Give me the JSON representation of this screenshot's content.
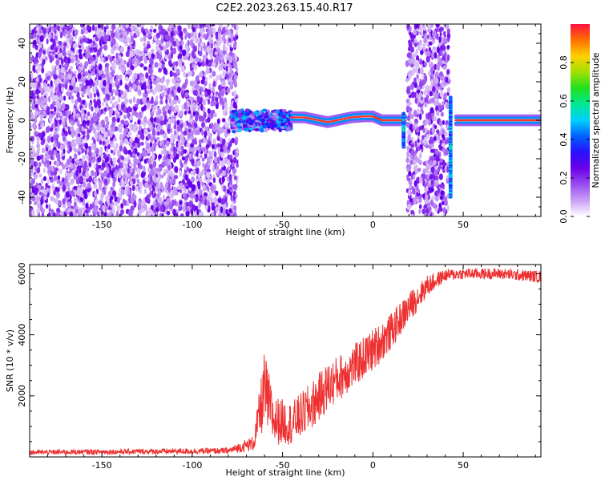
{
  "title": "C2E2.2023.263.15.40.R17",
  "chart_data": [
    {
      "type": "heatmap",
      "xlabel": "Height of straight line (km)",
      "ylabel": "Frequency (Hz)",
      "xlim": [
        -190,
        93
      ],
      "ylim": [
        -50,
        50
      ],
      "xticks": [
        -150,
        -100,
        -50,
        0,
        50
      ],
      "yticks": [
        -40,
        -20,
        0,
        20,
        40
      ],
      "colorbar": {
        "label": "Normalized spectral amplitude",
        "range": [
          0.0,
          1.0
        ],
        "ticks": [
          0.0,
          0.2,
          0.4,
          0.6,
          0.8
        ],
        "tick_labels": [
          "0.0",
          "0.2",
          "0.4",
          "0.6",
          "0.8"
        ],
        "colormap": [
          "#ffffff",
          "#c8a0f5",
          "#9a4cf0",
          "#6a00e8",
          "#2a10ff",
          "#0060ff",
          "#00d0ff",
          "#00e890",
          "#20e020",
          "#a0e000",
          "#ffd000",
          "#ff7000",
          "#ff1040"
        ]
      },
      "regions": [
        {
          "name": "noise",
          "x_range": [
            -190,
            -75
          ],
          "f_range": [
            -50,
            50
          ]
        },
        {
          "name": "broadening",
          "x_range": [
            -78,
            -45
          ],
          "f_center": 0,
          "f_halfwidth": 6
        },
        {
          "name": "carrier",
          "x_range": [
            -45,
            18
          ],
          "f_points": [
            [
              -45,
              1.5
            ],
            [
              -38,
              1.5
            ],
            [
              -30,
              0
            ],
            [
              -25,
              -1
            ],
            [
              -20,
              0
            ],
            [
              -12,
              1.5
            ],
            [
              -5,
              2
            ],
            [
              0,
              2
            ],
            [
              5,
              0
            ],
            [
              15,
              0
            ]
          ]
        },
        {
          "name": "spike",
          "x": 17,
          "f_range": [
            -14,
            4
          ]
        },
        {
          "name": "noise",
          "x_range": [
            19,
            42
          ],
          "f_range": [
            -50,
            50
          ]
        },
        {
          "name": "spike",
          "x": 43,
          "f_range": [
            -40,
            12
          ]
        },
        {
          "name": "carrier",
          "x_range": [
            46,
            93
          ],
          "f_points": [
            [
              46,
              0
            ],
            [
              93,
              0
            ]
          ]
        }
      ]
    },
    {
      "type": "line",
      "xlabel": "Height of straight line (km)",
      "ylabel": "SNR (10 * v/v)",
      "xlim": [
        -190,
        93
      ],
      "ylim": [
        0,
        6300
      ],
      "xticks": [
        -150,
        -100,
        -50,
        0,
        50
      ],
      "yticks": [
        2000,
        4000,
        6000
      ],
      "line_color": "#ee3030",
      "envelope": [
        {
          "x": -190,
          "mean": 150,
          "spread": 80
        },
        {
          "x": -80,
          "mean": 200,
          "spread": 100
        },
        {
          "x": -66,
          "mean": 450,
          "spread": 250
        },
        {
          "x": -60,
          "mean": 2200,
          "spread": 1300
        },
        {
          "x": -55,
          "mean": 1200,
          "spread": 800
        },
        {
          "x": -45,
          "mean": 1100,
          "spread": 700
        },
        {
          "x": -35,
          "mean": 1600,
          "spread": 800
        },
        {
          "x": -25,
          "mean": 2300,
          "spread": 800
        },
        {
          "x": -10,
          "mean": 3000,
          "spread": 700
        },
        {
          "x": 0,
          "mean": 3500,
          "spread": 700
        },
        {
          "x": 10,
          "mean": 4100,
          "spread": 600
        },
        {
          "x": 20,
          "mean": 4900,
          "spread": 500
        },
        {
          "x": 30,
          "mean": 5600,
          "spread": 350
        },
        {
          "x": 40,
          "mean": 5950,
          "spread": 200
        },
        {
          "x": 50,
          "mean": 6000,
          "spread": 180
        },
        {
          "x": 70,
          "mean": 6000,
          "spread": 180
        },
        {
          "x": 93,
          "mean": 5900,
          "spread": 200
        }
      ]
    }
  ]
}
